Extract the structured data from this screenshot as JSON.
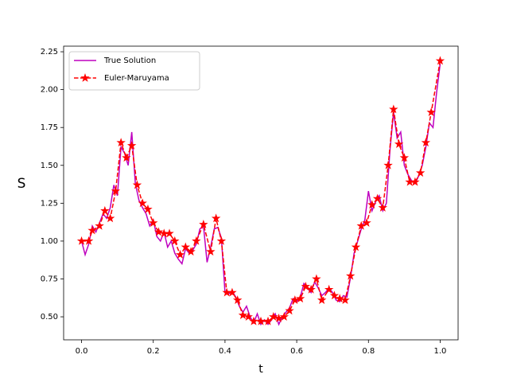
{
  "chart_data": {
    "type": "line",
    "xlabel": "t",
    "ylabel": "S",
    "xlim": [
      -0.05,
      1.05
    ],
    "ylim": [
      0.348,
      2.287
    ],
    "xticks": [
      {
        "value": 0,
        "label": "0.0"
      },
      {
        "value": 0.2,
        "label": "0.2"
      },
      {
        "value": 0.4,
        "label": "0.4"
      },
      {
        "value": 0.6,
        "label": "0.6"
      },
      {
        "value": 0.8,
        "label": "0.8"
      },
      {
        "value": 1,
        "label": "1.0"
      }
    ],
    "yticks": [
      {
        "value": 0.5,
        "label": "0.50"
      },
      {
        "value": 0.75,
        "label": "0.75"
      },
      {
        "value": 1,
        "label": "1.00"
      },
      {
        "value": 1.25,
        "label": "1.25"
      },
      {
        "value": 1.5,
        "label": "1.50"
      },
      {
        "value": 1.75,
        "label": "1.75"
      },
      {
        "value": 2,
        "label": "2.00"
      },
      {
        "value": 2.25,
        "label": "2.25"
      }
    ],
    "legend": "upper left",
    "series": [
      {
        "name": "True Solution",
        "color": "#bf00bf",
        "style": "solid",
        "marker": "none",
        "x": [
          0,
          0.01,
          0.02,
          0.03,
          0.04,
          0.05,
          0.06,
          0.07,
          0.08,
          0.09,
          0.1,
          0.11,
          0.12,
          0.13,
          0.14,
          0.15,
          0.16,
          0.17,
          0.18,
          0.19,
          0.2,
          0.21,
          0.22,
          0.23,
          0.24,
          0.25,
          0.26,
          0.27,
          0.28,
          0.29,
          0.3,
          0.31,
          0.32,
          0.33,
          0.34,
          0.35,
          0.36,
          0.37,
          0.38,
          0.39,
          0.4,
          0.41,
          0.42,
          0.43,
          0.44,
          0.45,
          0.46,
          0.47,
          0.48,
          0.49,
          0.5,
          0.51,
          0.52,
          0.53,
          0.54,
          0.55,
          0.56,
          0.57,
          0.58,
          0.59,
          0.6,
          0.61,
          0.62,
          0.63,
          0.64,
          0.65,
          0.66,
          0.67,
          0.68,
          0.69,
          0.7,
          0.71,
          0.72,
          0.73,
          0.74,
          0.75,
          0.76,
          0.77,
          0.78,
          0.79,
          0.8,
          0.81,
          0.82,
          0.83,
          0.84,
          0.85,
          0.86,
          0.87,
          0.88,
          0.89,
          0.9,
          0.91,
          0.92,
          0.93,
          0.94,
          0.95,
          0.96,
          0.97,
          0.98,
          0.99,
          1
        ],
        "values": [
          1.0,
          0.91,
          0.98,
          1.1,
          1.06,
          1.12,
          1.18,
          1.15,
          1.22,
          1.37,
          1.3,
          1.62,
          1.58,
          1.5,
          1.72,
          1.38,
          1.27,
          1.22,
          1.18,
          1.1,
          1.14,
          1.03,
          1.0,
          1.06,
          0.96,
          1.0,
          0.92,
          0.88,
          0.85,
          0.95,
          0.92,
          0.94,
          0.98,
          1.08,
          1.1,
          0.86,
          0.96,
          1.08,
          1.09,
          1.02,
          0.66,
          0.65,
          0.67,
          0.63,
          0.57,
          0.53,
          0.57,
          0.5,
          0.46,
          0.52,
          0.45,
          0.48,
          0.45,
          0.48,
          0.52,
          0.45,
          0.5,
          0.53,
          0.56,
          0.62,
          0.6,
          0.63,
          0.72,
          0.69,
          0.66,
          0.73,
          0.69,
          0.64,
          0.66,
          0.69,
          0.66,
          0.61,
          0.6,
          0.64,
          0.63,
          0.76,
          0.92,
          1.0,
          1.08,
          1.14,
          1.33,
          1.2,
          1.26,
          1.3,
          1.2,
          1.25,
          1.6,
          1.85,
          1.68,
          1.72,
          1.5,
          1.44,
          1.4,
          1.38,
          1.43,
          1.5,
          1.62,
          1.78,
          1.75,
          1.98,
          2.17
        ]
      },
      {
        "name": "Euler-Maruyama",
        "color": "#ff0000",
        "style": "dashed",
        "marker": "star",
        "x": [
          0,
          0.02,
          0.03,
          0.05,
          0.065,
          0.08,
          0.095,
          0.11,
          0.125,
          0.14,
          0.155,
          0.17,
          0.185,
          0.2,
          0.215,
          0.23,
          0.245,
          0.26,
          0.275,
          0.29,
          0.305,
          0.32,
          0.34,
          0.36,
          0.375,
          0.39,
          0.405,
          0.42,
          0.435,
          0.45,
          0.465,
          0.48,
          0.5,
          0.52,
          0.535,
          0.55,
          0.565,
          0.58,
          0.595,
          0.61,
          0.625,
          0.64,
          0.655,
          0.67,
          0.69,
          0.705,
          0.72,
          0.735,
          0.75,
          0.765,
          0.78,
          0.795,
          0.81,
          0.825,
          0.84,
          0.855,
          0.87,
          0.885,
          0.9,
          0.915,
          0.93,
          0.945,
          0.96,
          0.975,
          1
        ],
        "values": [
          1.0,
          1.0,
          1.07,
          1.1,
          1.2,
          1.15,
          1.33,
          1.65,
          1.55,
          1.63,
          1.37,
          1.25,
          1.21,
          1.12,
          1.06,
          1.05,
          1.05,
          1.0,
          0.91,
          0.96,
          0.93,
          1.0,
          1.11,
          0.93,
          1.15,
          1.0,
          0.66,
          0.66,
          0.61,
          0.51,
          0.5,
          0.47,
          0.47,
          0.47,
          0.5,
          0.49,
          0.5,
          0.54,
          0.61,
          0.62,
          0.7,
          0.68,
          0.75,
          0.61,
          0.68,
          0.64,
          0.62,
          0.61,
          0.77,
          0.96,
          1.1,
          1.12,
          1.24,
          1.28,
          1.22,
          1.5,
          1.87,
          1.64,
          1.55,
          1.39,
          1.39,
          1.45,
          1.65,
          1.85,
          2.19
        ]
      }
    ]
  }
}
